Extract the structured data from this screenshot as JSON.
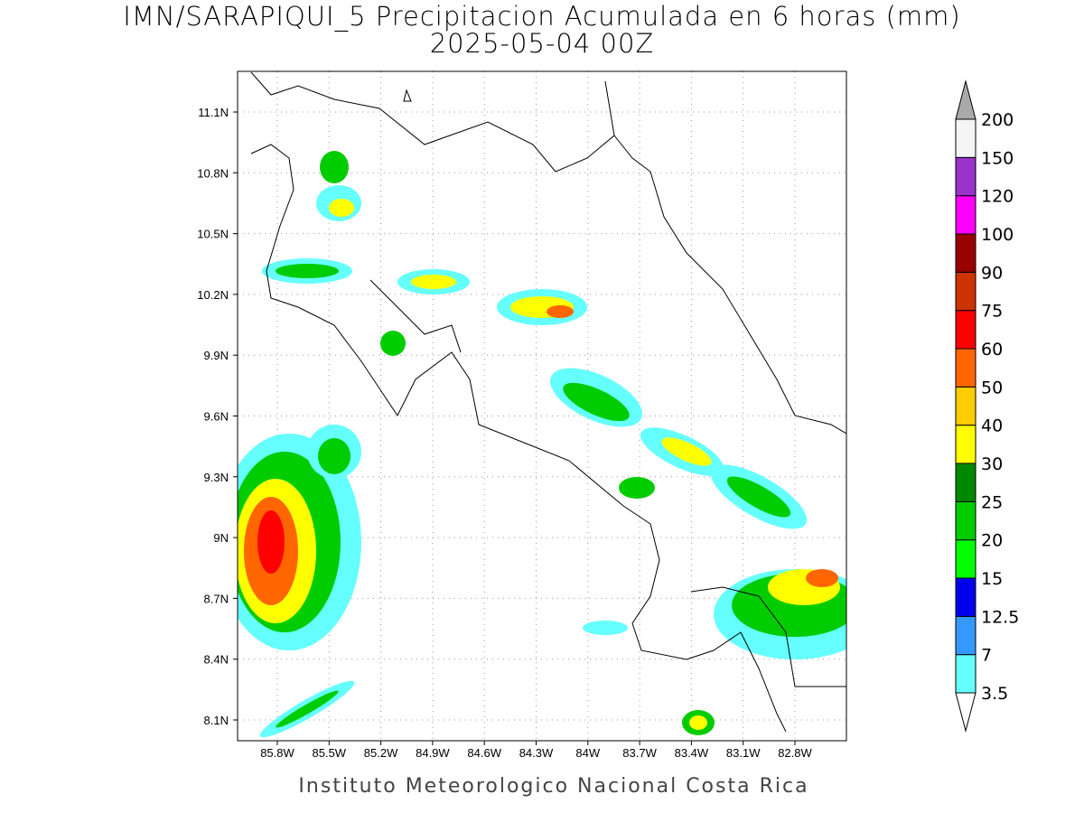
{
  "title": "IMN/SARAPIQUI_5 Precipitacion Acumulada en 6 horas (mm)",
  "subtitle": "2025-05-04 00Z",
  "footer": "Instituto Meteorologico Nacional Costa Rica",
  "lon_ticks": [
    "85.8W",
    "85.5W",
    "85.2W",
    "84.9W",
    "84.6W",
    "84.3W",
    "84W",
    "83.7W",
    "83.4W",
    "83.1W",
    "82.8W"
  ],
  "lat_ticks": [
    "11.1N",
    "10.8N",
    "10.5N",
    "10.2N",
    "9.9N",
    "9.6N",
    "9.3N",
    "9N",
    "8.7N",
    "8.4N",
    "8.1N"
  ],
  "colorbar": {
    "levels": [
      3.5,
      7,
      12.5,
      15,
      20,
      25,
      30,
      40,
      50,
      60,
      75,
      90,
      100,
      120,
      150,
      200
    ],
    "colors": [
      "#66ffff",
      "#3399ff",
      "#0000ee",
      "#00ff00",
      "#00cc00",
      "#008800",
      "#ffff00",
      "#ffcc00",
      "#ff6600",
      "#ff0000",
      "#cc3300",
      "#990000",
      "#ff00ff",
      "#9933cc",
      "#f5f5f5"
    ],
    "under_color": "#ffffff",
    "over_color": "#aaaaaa"
  }
}
